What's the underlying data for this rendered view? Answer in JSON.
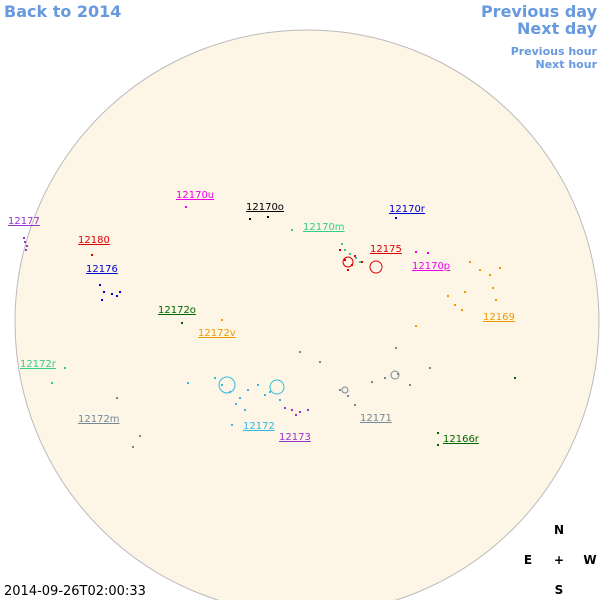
{
  "nav": {
    "back": "Back to 2014",
    "previous_day": "Previous day",
    "next_day": "Next day",
    "previous_hour": "Previous hour",
    "next_hour": "Next hour"
  },
  "timestamp": "2014-09-26T02:00:33",
  "compass": {
    "north": "N",
    "south": "S",
    "east": "E",
    "west": "W",
    "center": "+"
  },
  "regions": [
    {
      "label": "12177",
      "color": "#9933cc"
    },
    {
      "label": "12180",
      "color": "#dd0000"
    },
    {
      "label": "12176",
      "color": "#0000cc"
    },
    {
      "label": "12170u",
      "color": "#ee00ee"
    },
    {
      "label": "12170o",
      "color": "#000000"
    },
    {
      "label": "12170m",
      "color": "#33cc88"
    },
    {
      "label": "12170r",
      "color": "#0000cc"
    },
    {
      "label": "12175",
      "color": "#dd0000"
    },
    {
      "label": "12170p",
      "color": "#ee00ee"
    },
    {
      "label": "12172o",
      "color": "#006600"
    },
    {
      "label": "12172v",
      "color": "#ee9900"
    },
    {
      "label": "12169",
      "color": "#ee9900"
    },
    {
      "label": "12172r",
      "color": "#33cc88"
    },
    {
      "label": "12172m",
      "color": "#778899"
    },
    {
      "label": "12172",
      "color": "#33bbdd"
    },
    {
      "label": "12173",
      "color": "#9933cc"
    },
    {
      "label": "12171",
      "color": "#778899"
    },
    {
      "label": "12166r",
      "color": "#006600"
    }
  ]
}
